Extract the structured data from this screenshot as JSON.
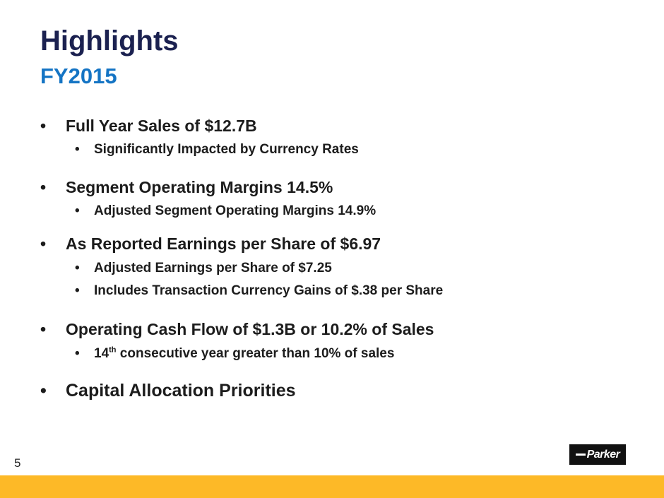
{
  "slide": {
    "title": "Highlights",
    "subtitle": "FY2015",
    "page_number": "5",
    "logo_text": "Parker",
    "accent_color": "#fdb927",
    "title_color": "#1b2150",
    "subtitle_color": "#1474c4"
  },
  "bullets": {
    "b1": "Full Year Sales of $12.7B",
    "b1s1": "Significantly Impacted by Currency Rates",
    "b2": "Segment Operating Margins 14.5%",
    "b2s1": "Adjusted Segment Operating Margins 14.9%",
    "b3": "As Reported Earnings per Share of $6.97",
    "b3s1": "Adjusted Earnings per Share of $7.25",
    "b3s2": "Includes Transaction Currency Gains of $.38 per Share",
    "b4": "Operating Cash Flow of $1.3B or 10.2% of Sales",
    "b4s1_num": "14",
    "b4s1_sup": "th",
    "b4s1_rest": " consecutive year greater than 10% of sales",
    "b5": "Capital Allocation Priorities",
    "marker": "•"
  }
}
